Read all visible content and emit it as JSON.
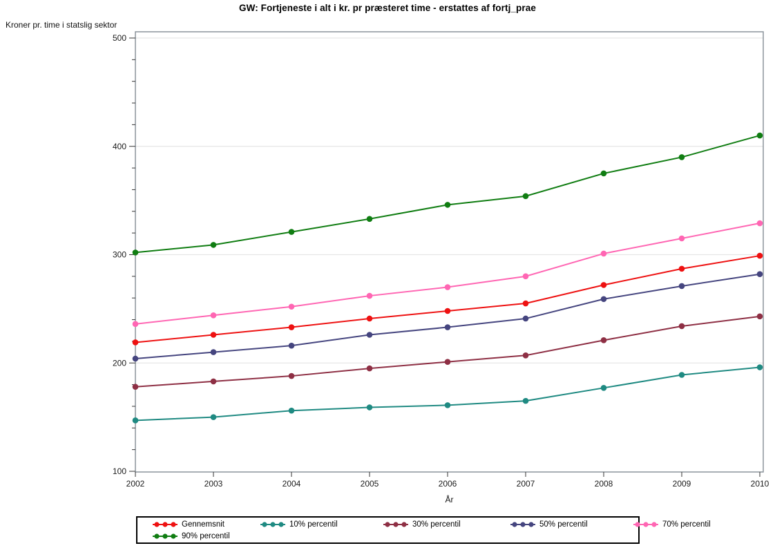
{
  "title": "GW: Fortjeneste i alt i kr. pr præsteret time - erstattes af fortj_prae",
  "chart_data": {
    "type": "line",
    "title": "GW: Fortjeneste i alt i kr. pr præsteret time - erstattes af fortj_prae",
    "xlabel": "År",
    "ylabel": "Kroner pr. time i statslig sektor",
    "x": [
      2002,
      2003,
      2004,
      2005,
      2006,
      2007,
      2008,
      2009,
      2010
    ],
    "ylim": [
      100,
      500
    ],
    "yticks": [
      100,
      200,
      300,
      400,
      500
    ],
    "y_minor_step": 20,
    "grid": true,
    "legend_position": "bottom",
    "marker": "dot",
    "series": [
      {
        "name": "Gennemsnit",
        "color": "#ee1111",
        "values": [
          219,
          226,
          233,
          241,
          248,
          255,
          272,
          287,
          299
        ]
      },
      {
        "name": "10% percentil",
        "color": "#1f8a82",
        "values": [
          147,
          150,
          156,
          159,
          161,
          165,
          177,
          189,
          196
        ]
      },
      {
        "name": "30% percentil",
        "color": "#8e2f44",
        "values": [
          178,
          183,
          188,
          195,
          201,
          207,
          221,
          234,
          243
        ]
      },
      {
        "name": "50% percentil",
        "color": "#45457f",
        "values": [
          204,
          210,
          216,
          226,
          233,
          241,
          259,
          271,
          282
        ]
      },
      {
        "name": "70% percentil",
        "color": "#ff66b3",
        "values": [
          236,
          244,
          252,
          262,
          270,
          280,
          301,
          315,
          329
        ]
      },
      {
        "name": "90% percentil",
        "color": "#107d12",
        "values": [
          302,
          309,
          321,
          333,
          346,
          354,
          375,
          390,
          410
        ]
      }
    ],
    "colors": {
      "frame": "#8b949b",
      "grid": "#e6e6e6",
      "tick": "#333333",
      "tick_label": "#1a1a1a"
    }
  }
}
